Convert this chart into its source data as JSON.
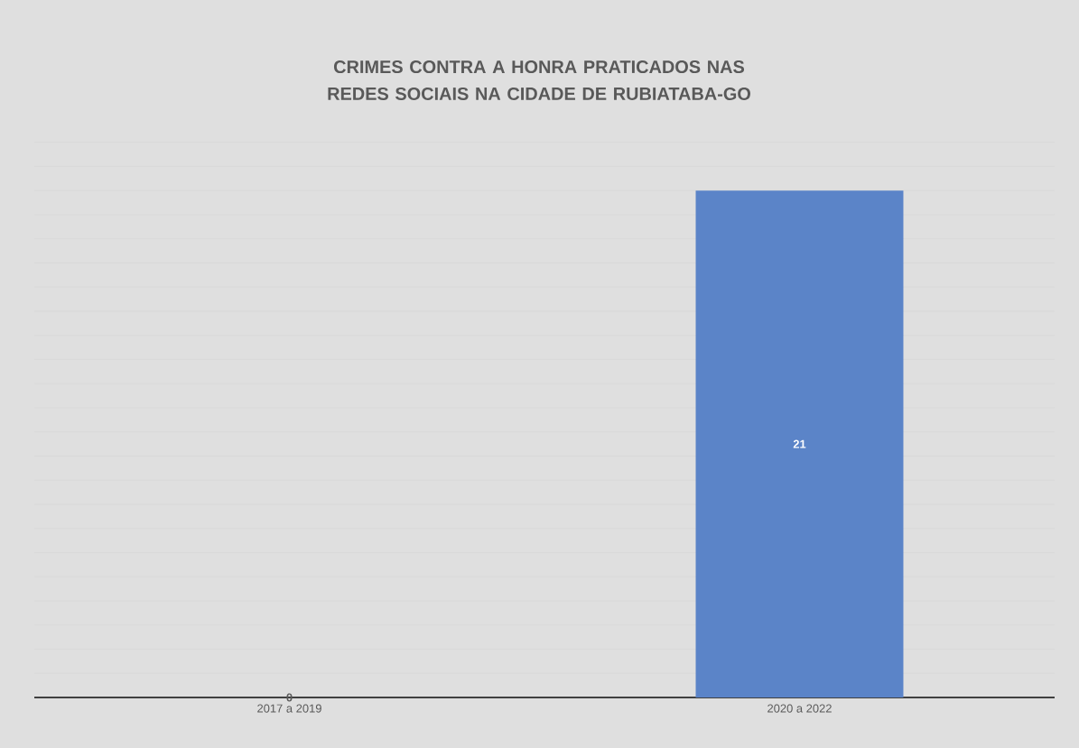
{
  "chart_data": {
    "type": "bar",
    "title": "CRIMES CONTRA A HONRA PRATICADOS NAS REDES SOCIAIS NA CIDADE DE RUBIATABA-GO",
    "categories": [
      "2017 a 2019",
      "2020 a 2022"
    ],
    "values": [
      0,
      21
    ],
    "color": "#5b84c8",
    "grid": "y",
    "tick_labels": "x",
    "data_labels": true
  }
}
